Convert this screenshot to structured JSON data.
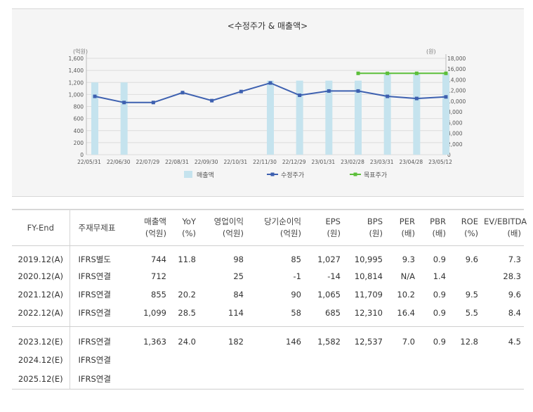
{
  "chart_data": {
    "type": "bar-line",
    "title": "<수정주가 & 매출액>",
    "left_axis_label": "(억원)",
    "right_axis_label": "(원)",
    "left_ylim": [
      0,
      1600
    ],
    "right_ylim": [
      0,
      18000
    ],
    "left_ticks": [
      "0",
      "200",
      "400",
      "600",
      "800",
      "1,000",
      "1,200",
      "1,400",
      "1,600"
    ],
    "right_ticks": [
      "0",
      "2,000",
      "4,000",
      "6,000",
      "8,000",
      "10,000",
      "12,000",
      "14,000",
      "16,000",
      "18,000"
    ],
    "categories": [
      "22/05/31",
      "22/06/30",
      "22/07/29",
      "22/08/31",
      "22/09/30",
      "22/10/31",
      "22/11/30",
      "22/12/29",
      "23/01/31",
      "23/02/28",
      "23/03/31",
      "23/04/28",
      "23/05/12"
    ],
    "series": [
      {
        "name": "매출액",
        "kind": "bar",
        "axis": "left",
        "color": "#c5e3ee",
        "values": [
          1200,
          1200,
          null,
          null,
          null,
          null,
          1230,
          1230,
          1230,
          1230,
          1360,
          1360,
          1360
        ]
      },
      {
        "name": "수정주가",
        "kind": "line",
        "axis": "right",
        "color": "#3d60b0",
        "values": [
          10900,
          9750,
          9750,
          11600,
          10100,
          11800,
          13400,
          11100,
          11900,
          11900,
          10900,
          10500,
          10800
        ]
      },
      {
        "name": "목표주가",
        "kind": "line",
        "axis": "right",
        "color": "#5cbf3a",
        "values": [
          null,
          null,
          null,
          null,
          null,
          null,
          null,
          null,
          null,
          15200,
          15200,
          15200,
          15200
        ]
      }
    ],
    "legend_position": "bottom",
    "grid": "horizontal"
  },
  "table": {
    "headers": [
      {
        "l1": "FY-End",
        "l2": ""
      },
      {
        "l1": "주재무제표",
        "l2": ""
      },
      {
        "l1": "매출액",
        "l2": "(억원)"
      },
      {
        "l1": "YoY",
        "l2": "(%)"
      },
      {
        "l1": "영업이익",
        "l2": "(억원)"
      },
      {
        "l1": "당기순이익",
        "l2": "(억원)"
      },
      {
        "l1": "EPS",
        "l2": "(원)"
      },
      {
        "l1": "BPS",
        "l2": "(원)"
      },
      {
        "l1": "PER",
        "l2": "(배)"
      },
      {
        "l1": "PBR",
        "l2": "(배)"
      },
      {
        "l1": "ROE",
        "l2": "(%)"
      },
      {
        "l1": "EV/EBITDA",
        "l2": "(배)"
      }
    ],
    "rows": [
      [
        "2019.12(A)",
        "IFRS별도",
        "744",
        "11.8",
        "98",
        "85",
        "1,027",
        "10,995",
        "9.3",
        "0.9",
        "9.6",
        "7.3"
      ],
      [
        "2020.12(A)",
        "IFRS연결",
        "712",
        "",
        "25",
        "-1",
        "-14",
        "10,814",
        "N/A",
        "1.4",
        "",
        "28.3"
      ],
      [
        "2021.12(A)",
        "IFRS연결",
        "855",
        "20.2",
        "84",
        "90",
        "1,065",
        "11,709",
        "10.2",
        "0.9",
        "9.5",
        "9.6"
      ],
      [
        "2022.12(A)",
        "IFRS연결",
        "1,099",
        "28.5",
        "114",
        "58",
        "685",
        "12,310",
        "16.4",
        "0.9",
        "5.5",
        "8.4"
      ],
      [
        "2023.12(E)",
        "IFRS연결",
        "1,363",
        "24.0",
        "182",
        "146",
        "1,582",
        "12,537",
        "7.0",
        "0.9",
        "12.8",
        "4.5"
      ],
      [
        "2024.12(E)",
        "IFRS연결",
        "",
        "",
        "",
        "",
        "",
        "",
        "",
        "",
        "",
        ""
      ],
      [
        "2025.12(E)",
        "IFRS연결",
        "",
        "",
        "",
        "",
        "",
        "",
        "",
        "",
        "",
        ""
      ]
    ]
  }
}
